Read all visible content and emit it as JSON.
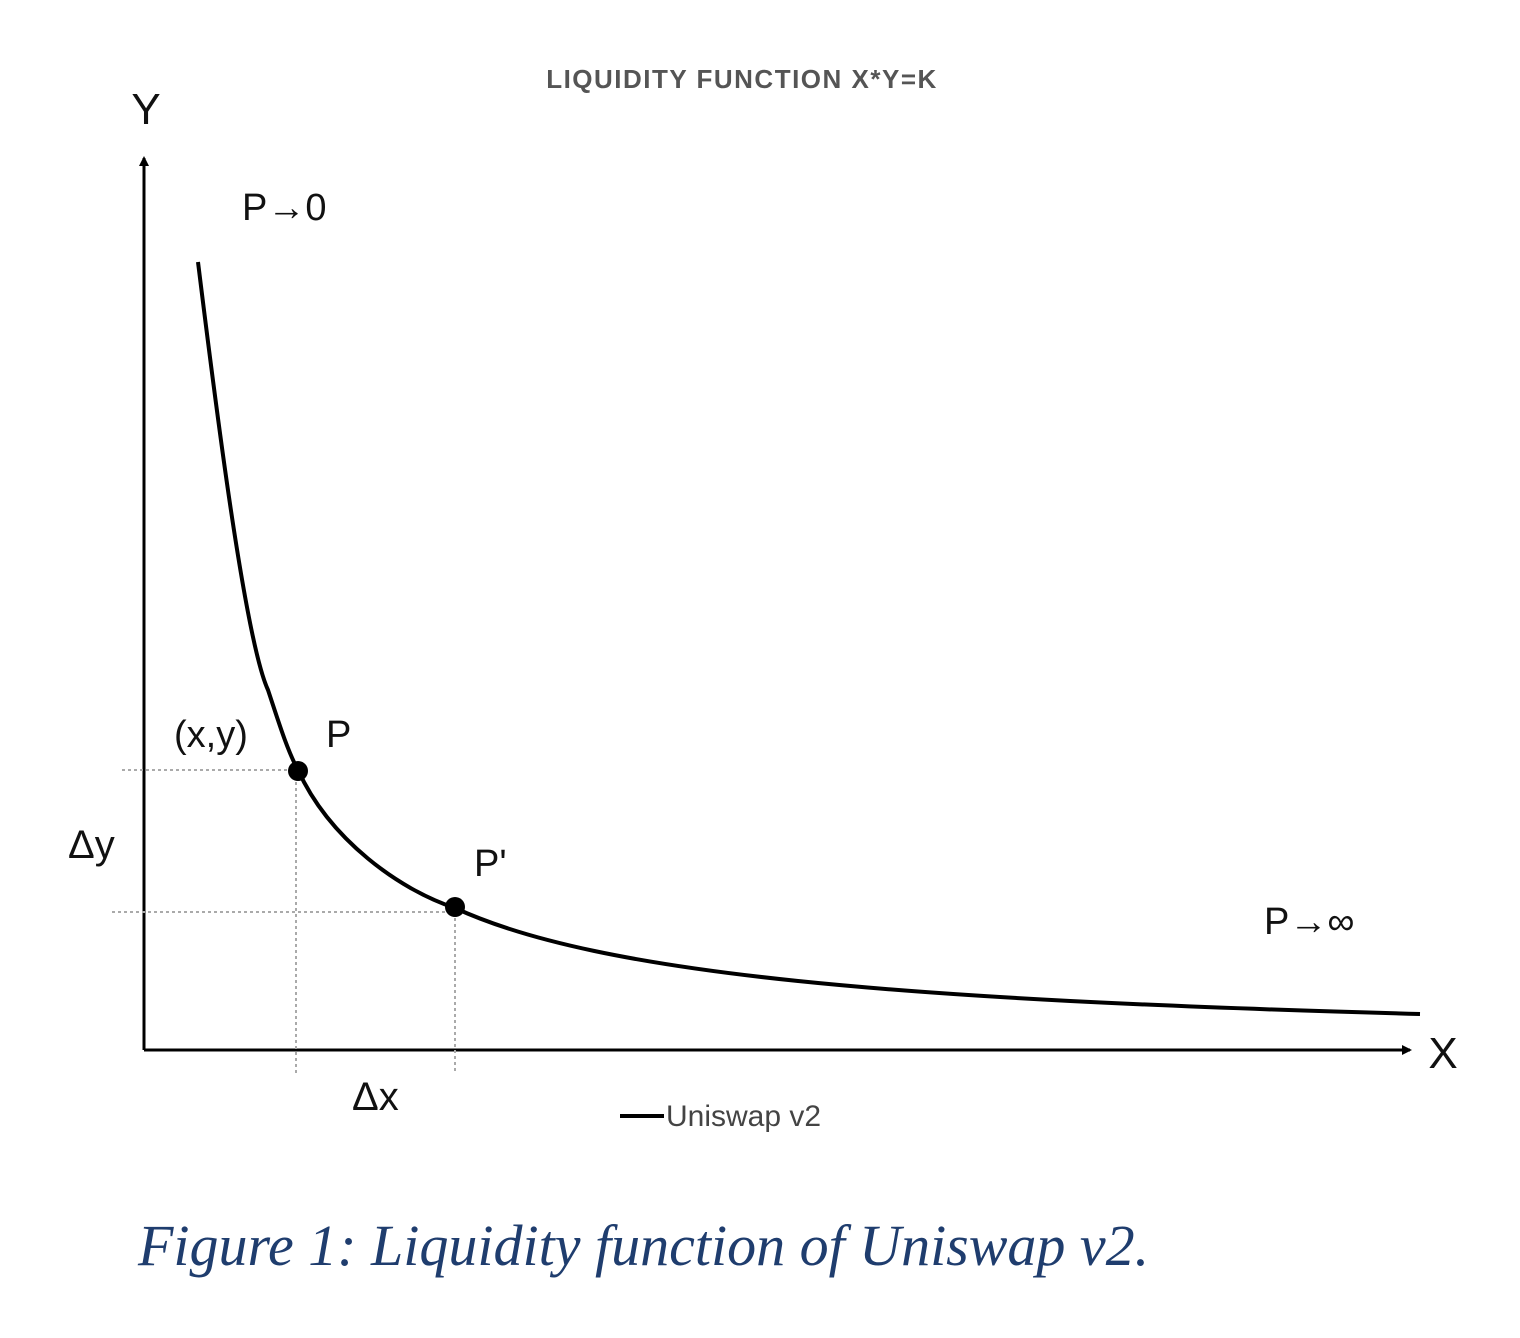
{
  "title": "LIQUIDITY FUNCTION X*Y=K",
  "axes": {
    "x_label": "X",
    "y_label": "Y"
  },
  "annotations": {
    "low_price": "P→0",
    "high_price": "P→∞",
    "point_p_coords": "(x,y)",
    "point_p": "P",
    "point_p_prime": "P'",
    "delta_y": "Δy",
    "delta_x": "Δx"
  },
  "legend": {
    "series_name": "Uniswap v2"
  },
  "caption": "Figure 1: Liquidity function of Uniswap v2.",
  "colors": {
    "curve": "#000000",
    "caption": "#1f3d6e",
    "title": "#555555",
    "guide": "#aaaaaa"
  }
}
